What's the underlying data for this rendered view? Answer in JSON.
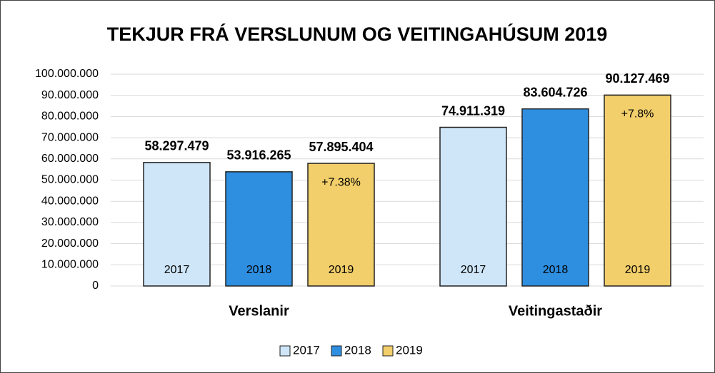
{
  "chart_data": {
    "type": "bar",
    "title": "TEKJUR FRÁ VERSLUNUM OG VEITINGAHÚSUM 2019",
    "categories": [
      "Verslanir",
      "Veitingastaðir"
    ],
    "series": [
      {
        "name": "2017",
        "color": "#cfe6f8",
        "values": [
          58297479,
          74911319
        ],
        "value_labels": [
          "58.297.479",
          "74.911.319"
        ]
      },
      {
        "name": "2018",
        "color": "#2e8ee0",
        "values": [
          53916265,
          83604726
        ],
        "value_labels": [
          "53.916.265",
          "83.604.726"
        ]
      },
      {
        "name": "2019",
        "color": "#f2cf6b",
        "values": [
          57895404,
          90127469
        ],
        "value_labels": [
          "57.895.404",
          "90.127.469"
        ]
      }
    ],
    "annotations": [
      "+7.38%",
      "+7.8%"
    ],
    "ylim": [
      0,
      100000000
    ],
    "yticks": [
      0,
      {
        "value": 10000000,
        "label": "10.000.000"
      },
      {
        "value": 20000000,
        "label": "20.000.000"
      },
      {
        "value": 30000000,
        "label": "30.000.000"
      },
      {
        "value": 40000000,
        "label": "40.000.000"
      },
      {
        "value": 50000000,
        "label": "50.000.000"
      },
      {
        "value": 60000000,
        "label": "60.000.000"
      },
      {
        "value": 70000000,
        "label": "70.000.000"
      },
      {
        "value": 80000000,
        "label": "80.000.000"
      },
      {
        "value": 90000000,
        "label": "90.000.000"
      },
      {
        "value": 100000000,
        "label": "100.000.000"
      }
    ],
    "grid": true,
    "legend": "bottom"
  }
}
